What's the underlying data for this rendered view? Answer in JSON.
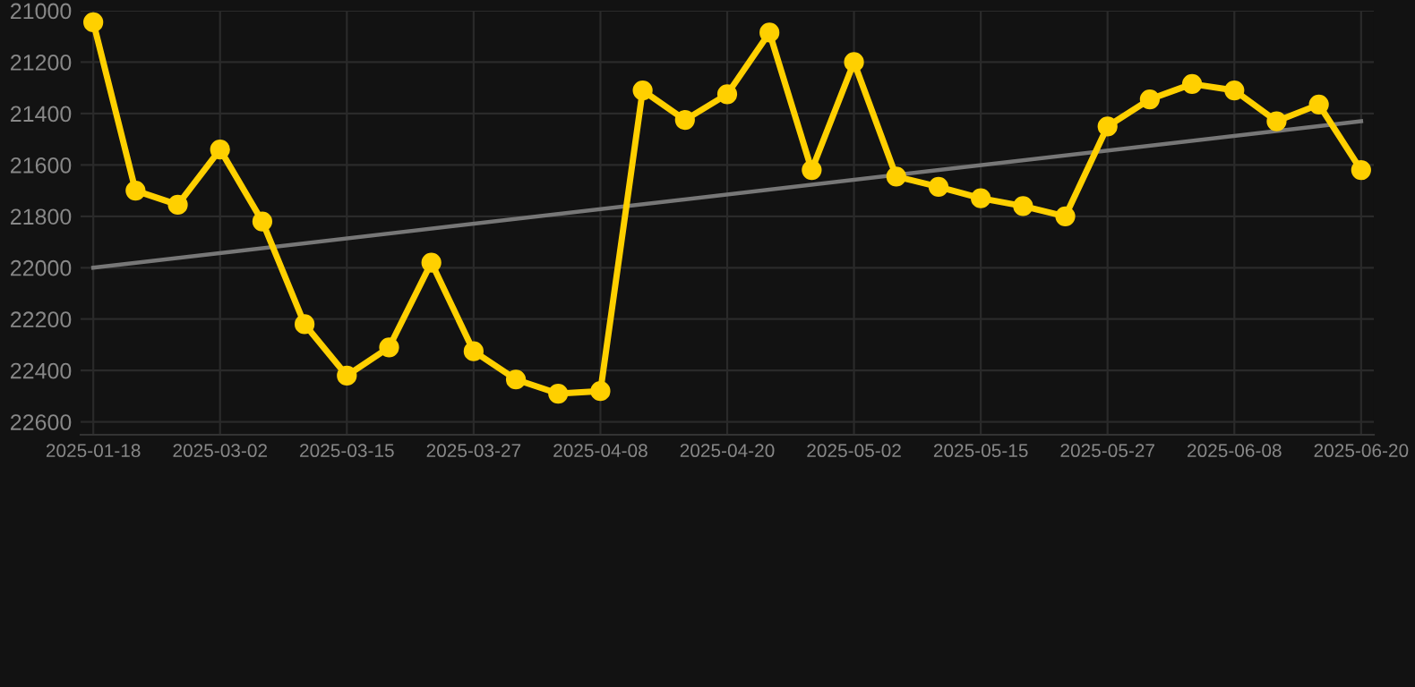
{
  "chart_data": {
    "type": "line",
    "categories": [
      "2025-01-18",
      null,
      null,
      "2025-03-02",
      null,
      null,
      "2025-03-15",
      null,
      null,
      "2025-03-27",
      null,
      null,
      "2025-04-08",
      null,
      null,
      "2025-04-20",
      null,
      null,
      "2025-05-02",
      null,
      null,
      "2025-05-15",
      null,
      null,
      "2025-05-27",
      null,
      null,
      "2025-06-08",
      null,
      null,
      "2025-06-20"
    ],
    "series": [
      {
        "color": "#ffd000",
        "marker": "circle",
        "values": [
          21045,
          21700,
          21755,
          21540,
          21820,
          22220,
          22420,
          22310,
          21980,
          22325,
          22435,
          22490,
          22480,
          21310,
          21425,
          21325,
          21085,
          21620,
          21200,
          21645,
          21685,
          21730,
          21760,
          21800,
          21450,
          21345,
          21285,
          21310,
          21430,
          21365,
          21620
        ]
      },
      {
        "color": "#777777",
        "marker": "none",
        "values": [
          22000,
          null,
          null,
          null,
          null,
          null,
          null,
          null,
          null,
          null,
          null,
          null,
          null,
          null,
          null,
          null,
          null,
          null,
          null,
          null,
          null,
          null,
          null,
          null,
          null,
          null,
          null,
          null,
          null,
          null,
          21430
        ]
      }
    ],
    "ylim": [
      22650,
      21000
    ],
    "yticks": [
      21000,
      21200,
      21400,
      21600,
      21800,
      22000,
      22200,
      22400,
      22600
    ],
    "grid": true
  }
}
